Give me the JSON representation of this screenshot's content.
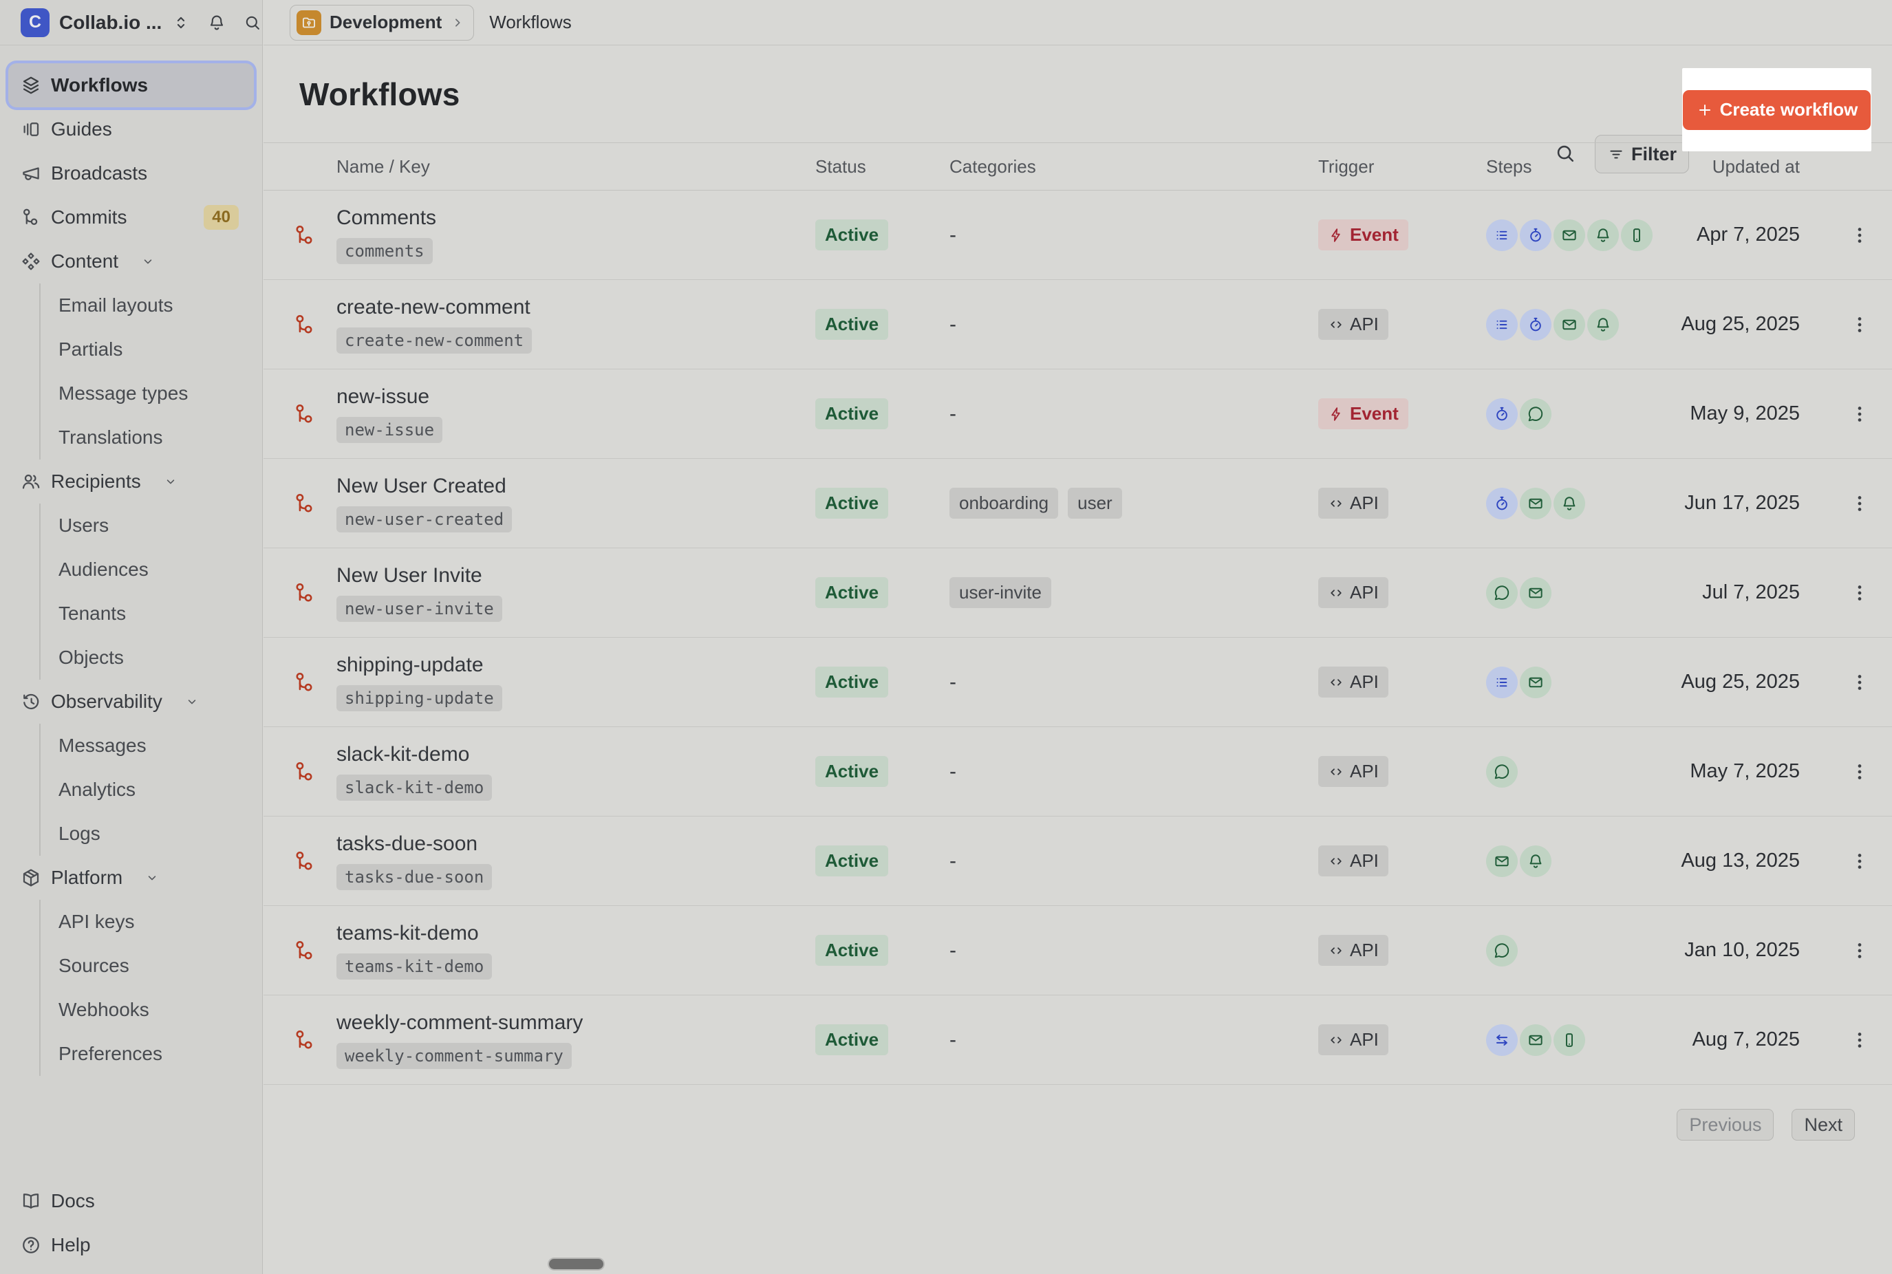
{
  "workspace": {
    "initial": "C",
    "name": "Collab.io ..."
  },
  "sidebar": {
    "items": [
      {
        "label": "Workflows",
        "icon": "layers",
        "active": true
      },
      {
        "label": "Guides",
        "icon": "guides"
      },
      {
        "label": "Broadcasts",
        "icon": "megaphone"
      },
      {
        "label": "Commits",
        "icon": "workflow",
        "badge": "40"
      },
      {
        "label": "Content",
        "icon": "content",
        "expandable": true,
        "children": [
          "Email layouts",
          "Partials",
          "Message types",
          "Translations"
        ]
      },
      {
        "label": "Recipients",
        "icon": "users",
        "expandable": true,
        "children": [
          "Users",
          "Audiences",
          "Tenants",
          "Objects"
        ]
      },
      {
        "label": "Observability",
        "icon": "history",
        "expandable": true,
        "children": [
          "Messages",
          "Analytics",
          "Logs"
        ]
      },
      {
        "label": "Platform",
        "icon": "box",
        "expandable": true,
        "children": [
          "API keys",
          "Sources",
          "Webhooks",
          "Preferences"
        ]
      }
    ],
    "footer": [
      {
        "label": "Docs",
        "icon": "book"
      },
      {
        "label": "Help",
        "icon": "help"
      }
    ]
  },
  "breadcrumb": {
    "environment": "Development",
    "page": "Workflows"
  },
  "header": {
    "title": "Workflows",
    "filter_label": "Filter",
    "create_label": "Create workflow"
  },
  "table": {
    "columns": [
      "Name / Key",
      "Status",
      "Categories",
      "Trigger",
      "Steps",
      "Updated at"
    ],
    "empty_categories": "-",
    "rows": [
      {
        "name": "Comments",
        "key": "comments",
        "status": "Active",
        "categories": [],
        "trigger": {
          "label": "Event",
          "icon": "lightning",
          "style": "event"
        },
        "steps": [
          {
            "icon": "batch",
            "color": "blue"
          },
          {
            "icon": "delay",
            "color": "blue"
          },
          {
            "icon": "email",
            "color": "green"
          },
          {
            "icon": "bell",
            "color": "green"
          },
          {
            "icon": "phone",
            "color": "green"
          }
        ],
        "updated": "Apr 7, 2025"
      },
      {
        "name": "create-new-comment",
        "key": "create-new-comment",
        "status": "Active",
        "categories": [],
        "trigger": {
          "label": "API",
          "icon": "code",
          "style": "api"
        },
        "steps": [
          {
            "icon": "batch",
            "color": "blue"
          },
          {
            "icon": "delay",
            "color": "blue"
          },
          {
            "icon": "email",
            "color": "green"
          },
          {
            "icon": "bell",
            "color": "green"
          }
        ],
        "updated": "Aug 25, 2025"
      },
      {
        "name": "new-issue",
        "key": "new-issue",
        "status": "Active",
        "categories": [],
        "trigger": {
          "label": "Event",
          "icon": "lightning",
          "style": "event"
        },
        "steps": [
          {
            "icon": "delay",
            "color": "blue"
          },
          {
            "icon": "chat",
            "color": "green"
          }
        ],
        "updated": "May 9, 2025"
      },
      {
        "name": "New User Created",
        "key": "new-user-created",
        "status": "Active",
        "categories": [
          "onboarding",
          "user"
        ],
        "trigger": {
          "label": "API",
          "icon": "code",
          "style": "api"
        },
        "steps": [
          {
            "icon": "delay",
            "color": "blue"
          },
          {
            "icon": "email",
            "color": "green"
          },
          {
            "icon": "bell",
            "color": "green"
          }
        ],
        "updated": "Jun 17, 2025"
      },
      {
        "name": "New User Invite",
        "key": "new-user-invite",
        "status": "Active",
        "categories": [
          "user-invite"
        ],
        "trigger": {
          "label": "API",
          "icon": "code",
          "style": "api"
        },
        "steps": [
          {
            "icon": "chat",
            "color": "green"
          },
          {
            "icon": "email",
            "color": "green"
          }
        ],
        "updated": "Jul 7, 2025"
      },
      {
        "name": "shipping-update",
        "key": "shipping-update",
        "status": "Active",
        "categories": [],
        "trigger": {
          "label": "API",
          "icon": "code",
          "style": "api"
        },
        "steps": [
          {
            "icon": "batch",
            "color": "blue"
          },
          {
            "icon": "email",
            "color": "green"
          }
        ],
        "updated": "Aug 25, 2025"
      },
      {
        "name": "slack-kit-demo",
        "key": "slack-kit-demo",
        "status": "Active",
        "categories": [],
        "trigger": {
          "label": "API",
          "icon": "code",
          "style": "api"
        },
        "steps": [
          {
            "icon": "chat",
            "color": "green"
          }
        ],
        "updated": "May 7, 2025"
      },
      {
        "name": "tasks-due-soon",
        "key": "tasks-due-soon",
        "status": "Active",
        "categories": [],
        "trigger": {
          "label": "API",
          "icon": "code",
          "style": "api"
        },
        "steps": [
          {
            "icon": "email",
            "color": "green"
          },
          {
            "icon": "bell",
            "color": "green"
          }
        ],
        "updated": "Aug 13, 2025"
      },
      {
        "name": "teams-kit-demo",
        "key": "teams-kit-demo",
        "status": "Active",
        "categories": [],
        "trigger": {
          "label": "API",
          "icon": "code",
          "style": "api"
        },
        "steps": [
          {
            "icon": "chat",
            "color": "green"
          }
        ],
        "updated": "Jan 10, 2025"
      },
      {
        "name": "weekly-comment-summary",
        "key": "weekly-comment-summary",
        "status": "Active",
        "categories": [],
        "trigger": {
          "label": "API",
          "icon": "code",
          "style": "api"
        },
        "steps": [
          {
            "icon": "swap",
            "color": "blue"
          },
          {
            "icon": "email",
            "color": "green"
          },
          {
            "icon": "phone",
            "color": "green"
          }
        ],
        "updated": "Aug 7, 2025"
      }
    ]
  },
  "pagination": {
    "previous": "Previous",
    "next": "Next"
  },
  "colors": {
    "accent_orange": "#e75a3c",
    "highlight_white": "#ffffff",
    "status_active_bg": "#c4d3c6",
    "status_active_text": "#1e5a37",
    "trigger_event_bg": "#dcc7c5",
    "trigger_event_text": "#a22432",
    "chip_blue_bg": "#bec9e7",
    "chip_blue_icon": "#2e45c0",
    "chip_green_bg": "#c0d3c3",
    "chip_green_icon": "#1f5c38",
    "commits_badge_bg": "#d9cb9b",
    "commits_badge_text": "#8a6a20",
    "workflow_icon_red": "#b53a21",
    "workspace_logo_blue": "#3f56c5",
    "env_folder_amber": "#c5882e"
  }
}
